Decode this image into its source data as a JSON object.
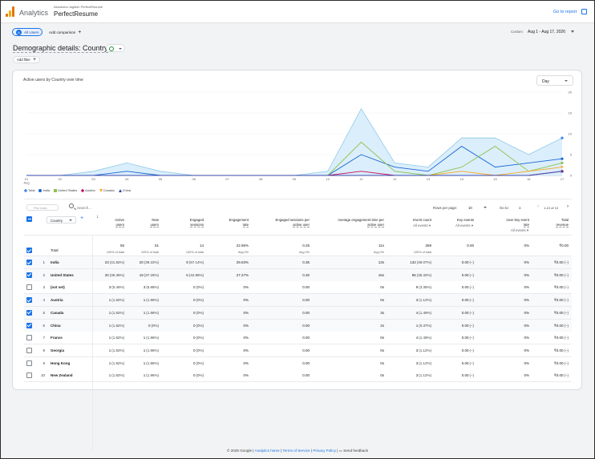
{
  "header": {
    "app_name": "Analytics",
    "account": "Akanksha Jagdish PerfectResume",
    "property": "PerfectResume",
    "goto_report": "Go to report"
  },
  "controls": {
    "segment_avatar": "A",
    "segment": "All Users",
    "add_comparison": "Add comparison",
    "date_label": "Custom",
    "date_range": "Aug 1 - Aug 17, 2026"
  },
  "page": {
    "title": "Demographic details: Country",
    "add_filter": "Add filter"
  },
  "chart_data": {
    "type": "area",
    "title": "Active users by Country over time",
    "granularity": "Day",
    "x": [
      "01\nAug",
      "02",
      "03",
      "04",
      "05",
      "06",
      "07",
      "08",
      "09",
      "10",
      "11",
      "12",
      "13",
      "14",
      "15",
      "16",
      "17"
    ],
    "ylim": [
      0,
      20
    ],
    "yticks": [
      0,
      5,
      10,
      15,
      20
    ],
    "series": [
      {
        "name": "Total",
        "color": "#4285f4",
        "marker": "diamond",
        "values": [
          0,
          0,
          1,
          3,
          1,
          0,
          0,
          0,
          0,
          1,
          16,
          3,
          2,
          9,
          9,
          5,
          9
        ],
        "area": true
      },
      {
        "name": "India",
        "color": "#1967d2",
        "marker": "circle",
        "values": [
          0,
          0,
          0,
          1,
          0,
          0,
          0,
          0,
          0,
          0,
          5,
          2,
          1,
          7,
          2,
          3,
          4
        ]
      },
      {
        "name": "United States",
        "color": "#8bc34a",
        "marker": "square",
        "values": [
          0,
          0,
          0,
          0,
          0,
          0,
          0,
          0,
          0,
          0,
          8,
          1,
          0,
          2,
          7,
          1,
          3
        ]
      },
      {
        "name": "Austria",
        "color": "#c51162",
        "marker": "diamond",
        "values": [
          0,
          0,
          0,
          0,
          0,
          0,
          0,
          0,
          0,
          0,
          1,
          0,
          0,
          0,
          0,
          0,
          1
        ]
      },
      {
        "name": "Canada",
        "color": "#f9a825",
        "marker": "triangle-down",
        "values": [
          0,
          0,
          0,
          0,
          0,
          0,
          0,
          0,
          0,
          0,
          0,
          0,
          0,
          1,
          0,
          1,
          2
        ]
      },
      {
        "name": "China",
        "color": "#3949ab",
        "marker": "triangle",
        "values": [
          0,
          0,
          0,
          0,
          0,
          0,
          0,
          0,
          0,
          0,
          0,
          0,
          0,
          0,
          0,
          0,
          1
        ]
      }
    ],
    "legend": "bottom-left"
  },
  "table": {
    "plot_rows": "Plot rows",
    "search_placeholder": "Search...",
    "rows_per_page_label": "Rows per page:",
    "rows_per_page": "10",
    "goto_label": "Go to:",
    "goto_value": "1",
    "pagination": "1-10 of 13",
    "dimension": "Country",
    "columns": [
      {
        "key": "active_users",
        "label1": "Active",
        "label2": "users",
        "sub": ""
      },
      {
        "key": "new_users",
        "label1": "New",
        "label2": "users",
        "sub": ""
      },
      {
        "key": "engaged",
        "label1": "Engaged",
        "label2": "sessions",
        "sub": ""
      },
      {
        "key": "engagement_rate",
        "label1": "Engagement",
        "label2": "rate",
        "sub": ""
      },
      {
        "key": "eng_per_user",
        "label1": "Engaged sessions per",
        "label2": "active user",
        "sub": ""
      },
      {
        "key": "avg_time",
        "label1": "Average engagement time per",
        "label2": "active user",
        "sub": ""
      },
      {
        "key": "event_count",
        "label1": "Event count",
        "label2": "",
        "sub": "All events"
      },
      {
        "key": "key_events",
        "label1": "Key events",
        "label2": "",
        "sub": "All events"
      },
      {
        "key": "user_key_rate",
        "label1": "User key event",
        "label2": "rate",
        "sub": "All events"
      },
      {
        "key": "revenue",
        "label1": "Total",
        "label2": "revenue",
        "sub": ""
      }
    ],
    "total": {
      "label": "Total",
      "values": [
        "55",
        "51",
        "14",
        "22.95%",
        "0.25",
        "11s",
        "269",
        "0.00",
        "0%",
        "₹0.00"
      ],
      "subs": [
        "100% of total",
        "100% of total",
        "100% of total",
        "Avg 0%",
        "Avg 0%",
        "Avg 0%",
        "100% of total",
        "",
        "",
        ""
      ]
    },
    "rows": [
      {
        "n": "1",
        "country": "India",
        "checked": true,
        "values": [
          "23",
          "20",
          "8",
          "29.63%",
          "0.35",
          "13s",
          "132",
          "0.00",
          "0%",
          "₹0.00"
        ],
        "pct": [
          "(41.82%)",
          "(39.22%)",
          "(57.14%)",
          "",
          "",
          "",
          "(49.07%)",
          "(–)",
          "",
          "(–)"
        ]
      },
      {
        "n": "2",
        "country": "United States",
        "checked": true,
        "values": [
          "20",
          "19",
          "6",
          "27.27%",
          "0.30",
          "16s",
          "95",
          "0.00",
          "0%",
          "₹0.00"
        ],
        "pct": [
          "(36.36%)",
          "(37.25%)",
          "(42.86%)",
          "",
          "",
          "",
          "(35.32%)",
          "(–)",
          "",
          "(–)"
        ]
      },
      {
        "n": "3",
        "country": "(not set)",
        "checked": false,
        "values": [
          "3",
          "3",
          "0",
          "0%",
          "0.00",
          "0s",
          "9",
          "0.00",
          "0%",
          "₹0.00"
        ],
        "pct": [
          "(5.45%)",
          "(5.88%)",
          "(0%)",
          "",
          "",
          "",
          "(3.35%)",
          "(–)",
          "",
          "(–)"
        ]
      },
      {
        "n": "4",
        "country": "Austria",
        "checked": true,
        "values": [
          "1",
          "1",
          "0",
          "0%",
          "0.00",
          "0s",
          "3",
          "0.00",
          "0%",
          "₹0.00"
        ],
        "pct": [
          "(1.82%)",
          "(1.96%)",
          "(0%)",
          "",
          "",
          "",
          "(1.12%)",
          "(–)",
          "",
          "(–)"
        ]
      },
      {
        "n": "5",
        "country": "Canada",
        "checked": true,
        "values": [
          "1",
          "1",
          "0",
          "0%",
          "0.00",
          "3s",
          "4",
          "0.00",
          "0%",
          "₹0.00"
        ],
        "pct": [
          "(1.82%)",
          "(1.96%)",
          "(0%)",
          "",
          "",
          "",
          "(1.49%)",
          "(–)",
          "",
          "(–)"
        ]
      },
      {
        "n": "6",
        "country": "China",
        "checked": true,
        "values": [
          "1",
          "0",
          "0",
          "0%",
          "0.00",
          "2s",
          "1",
          "0.00",
          "0%",
          "₹0.00"
        ],
        "pct": [
          "(1.82%)",
          "(0%)",
          "(0%)",
          "",
          "",
          "",
          "(0.37%)",
          "(–)",
          "",
          "(–)"
        ]
      },
      {
        "n": "7",
        "country": "France",
        "checked": false,
        "values": [
          "1",
          "1",
          "0",
          "0%",
          "0.00",
          "0s",
          "4",
          "0.00",
          "0%",
          "₹0.00"
        ],
        "pct": [
          "(1.82%)",
          "(1.96%)",
          "(0%)",
          "",
          "",
          "",
          "(1.49%)",
          "(–)",
          "",
          "(–)"
        ]
      },
      {
        "n": "8",
        "country": "Georgia",
        "checked": false,
        "values": [
          "1",
          "1",
          "0",
          "0%",
          "0.00",
          "0s",
          "3",
          "0.00",
          "0%",
          "₹0.00"
        ],
        "pct": [
          "(1.82%)",
          "(1.96%)",
          "(0%)",
          "",
          "",
          "",
          "(1.12%)",
          "(–)",
          "",
          "(–)"
        ]
      },
      {
        "n": "9",
        "country": "Hong Kong",
        "checked": false,
        "values": [
          "1",
          "1",
          "0",
          "0%",
          "0.00",
          "0s",
          "3",
          "0.00",
          "0%",
          "₹0.00"
        ],
        "pct": [
          "(1.82%)",
          "(1.96%)",
          "(0%)",
          "",
          "",
          "",
          "(1.12%)",
          "(–)",
          "",
          "(–)"
        ]
      },
      {
        "n": "10",
        "country": "New Zealand",
        "checked": false,
        "values": [
          "1",
          "1",
          "0",
          "0%",
          "0.00",
          "0s",
          "3",
          "0.00",
          "0%",
          "₹0.00"
        ],
        "pct": [
          "(1.82%)",
          "(1.96%)",
          "(0%)",
          "",
          "",
          "",
          "(1.12%)",
          "(–)",
          "",
          "(–)"
        ]
      }
    ]
  },
  "footer": {
    "copyright": "© 2026 Google |",
    "home": "Analytics home",
    "terms": "Terms of Service",
    "privacy": "Privacy Policy",
    "feedback": "Send feedback"
  }
}
